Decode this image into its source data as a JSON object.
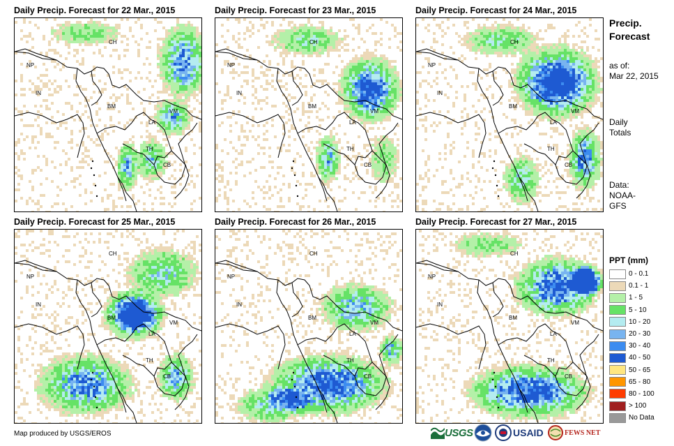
{
  "panels": [
    {
      "title": "Daily Precip. Forecast for 22 Mar., 2015"
    },
    {
      "title": "Daily Precip. Forecast for 23 Mar., 2015"
    },
    {
      "title": "Daily Precip. Forecast for 24 Mar., 2015"
    },
    {
      "title": "Daily Precip. Forecast for 25 Mar., 2015"
    },
    {
      "title": "Daily Precip. Forecast for 26 Mar., 2015"
    },
    {
      "title": "Daily Precip. Forecast for 27 Mar., 2015"
    }
  ],
  "country_labels": [
    "CH",
    "NP",
    "IN",
    "BM",
    "LA",
    "VM",
    "TH",
    "CB"
  ],
  "sidebar": {
    "title_line1": "Precip.",
    "title_line2": "Forecast",
    "asof_line1": "as of:",
    "asof_line2": "Mar 22, 2015",
    "totals_line1": "Daily",
    "totals_line2": "Totals",
    "data_line1": "Data:",
    "data_line2": "NOAA-",
    "data_line3": "GFS"
  },
  "legend": {
    "title": "PPT (mm)",
    "items": [
      {
        "label": "0 - 0.1",
        "color": "#ffffff"
      },
      {
        "label": "0.1 - 1",
        "color": "#ecd9b8"
      },
      {
        "label": "1 - 5",
        "color": "#b4f0a8"
      },
      {
        "label": "5 - 10",
        "color": "#66e266"
      },
      {
        "label": "10 - 20",
        "color": "#b4ecf0"
      },
      {
        "label": "20 - 30",
        "color": "#78b4f0"
      },
      {
        "label": "30 - 40",
        "color": "#3c8cf0"
      },
      {
        "label": "40 - 50",
        "color": "#1e5ad2"
      },
      {
        "label": "50 - 65",
        "color": "#ffe680"
      },
      {
        "label": "65 - 80",
        "color": "#ff9600"
      },
      {
        "label": "80 - 100",
        "color": "#ff3c00"
      },
      {
        "label": "> 100",
        "color": "#a01e1e"
      },
      {
        "label": "No Data",
        "color": "#999999"
      }
    ]
  },
  "credit": "Map produced by USGS/EROS",
  "logos": {
    "usgs": "USGS",
    "usaid": "USAID",
    "fews": "FEWS NET"
  }
}
